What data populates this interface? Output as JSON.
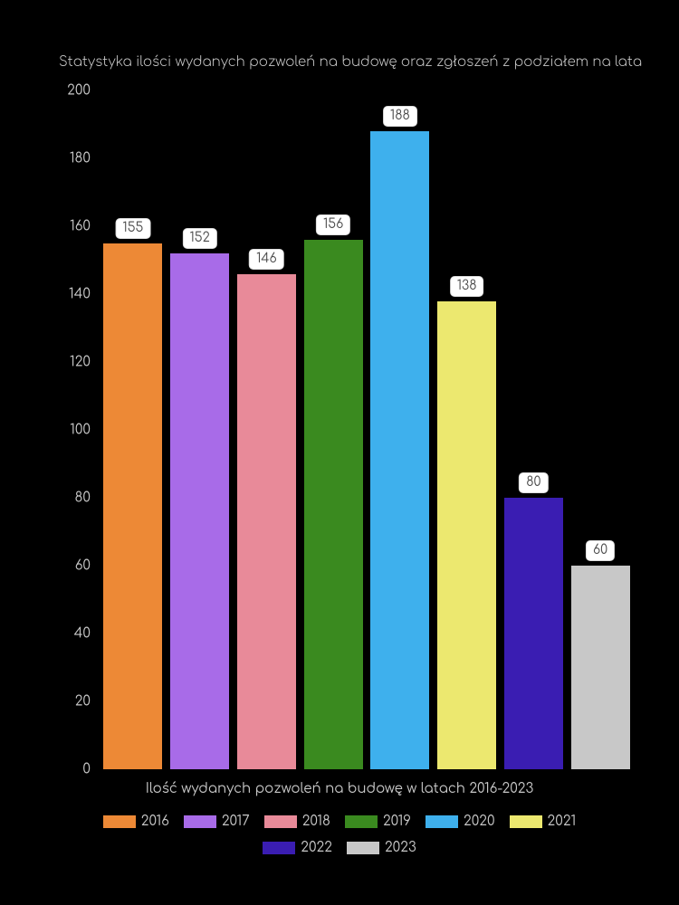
{
  "chart": {
    "type": "bar",
    "title": "Statystyka ilości wydanych pozwoleń na budowę oraz zgłoszeń z podziałem na lata",
    "title_fontsize": 15,
    "title_color": "#c8c8c8",
    "background_color": "#000000",
    "text_color": "#c8c8c8",
    "xlabel": "Ilość wydanych pozwoleń na budowę w latach 2016-2023",
    "ylim": [
      0,
      200
    ],
    "ytick_step": 20,
    "yticks": [
      0,
      20,
      40,
      60,
      80,
      100,
      120,
      140,
      160,
      180,
      200
    ],
    "categories": [
      "2016",
      "2017",
      "2018",
      "2019",
      "2020",
      "2021",
      "2022",
      "2023"
    ],
    "values": [
      155,
      152,
      146,
      156,
      188,
      138,
      80,
      60
    ],
    "bar_colors": [
      "#ed8936",
      "#a86be8",
      "#e88a99",
      "#3a8a1f",
      "#3eb0ed",
      "#ece86f",
      "#3a1db2",
      "#c8c8c8"
    ],
    "bar_width_ratio": 0.88,
    "label_bg": "#ffffff",
    "label_text_color": "#4a4a4a",
    "label_fontsize": 14,
    "axis_fontsize": 15,
    "legend_swatch_width": 36,
    "legend_swatch_height": 14
  }
}
